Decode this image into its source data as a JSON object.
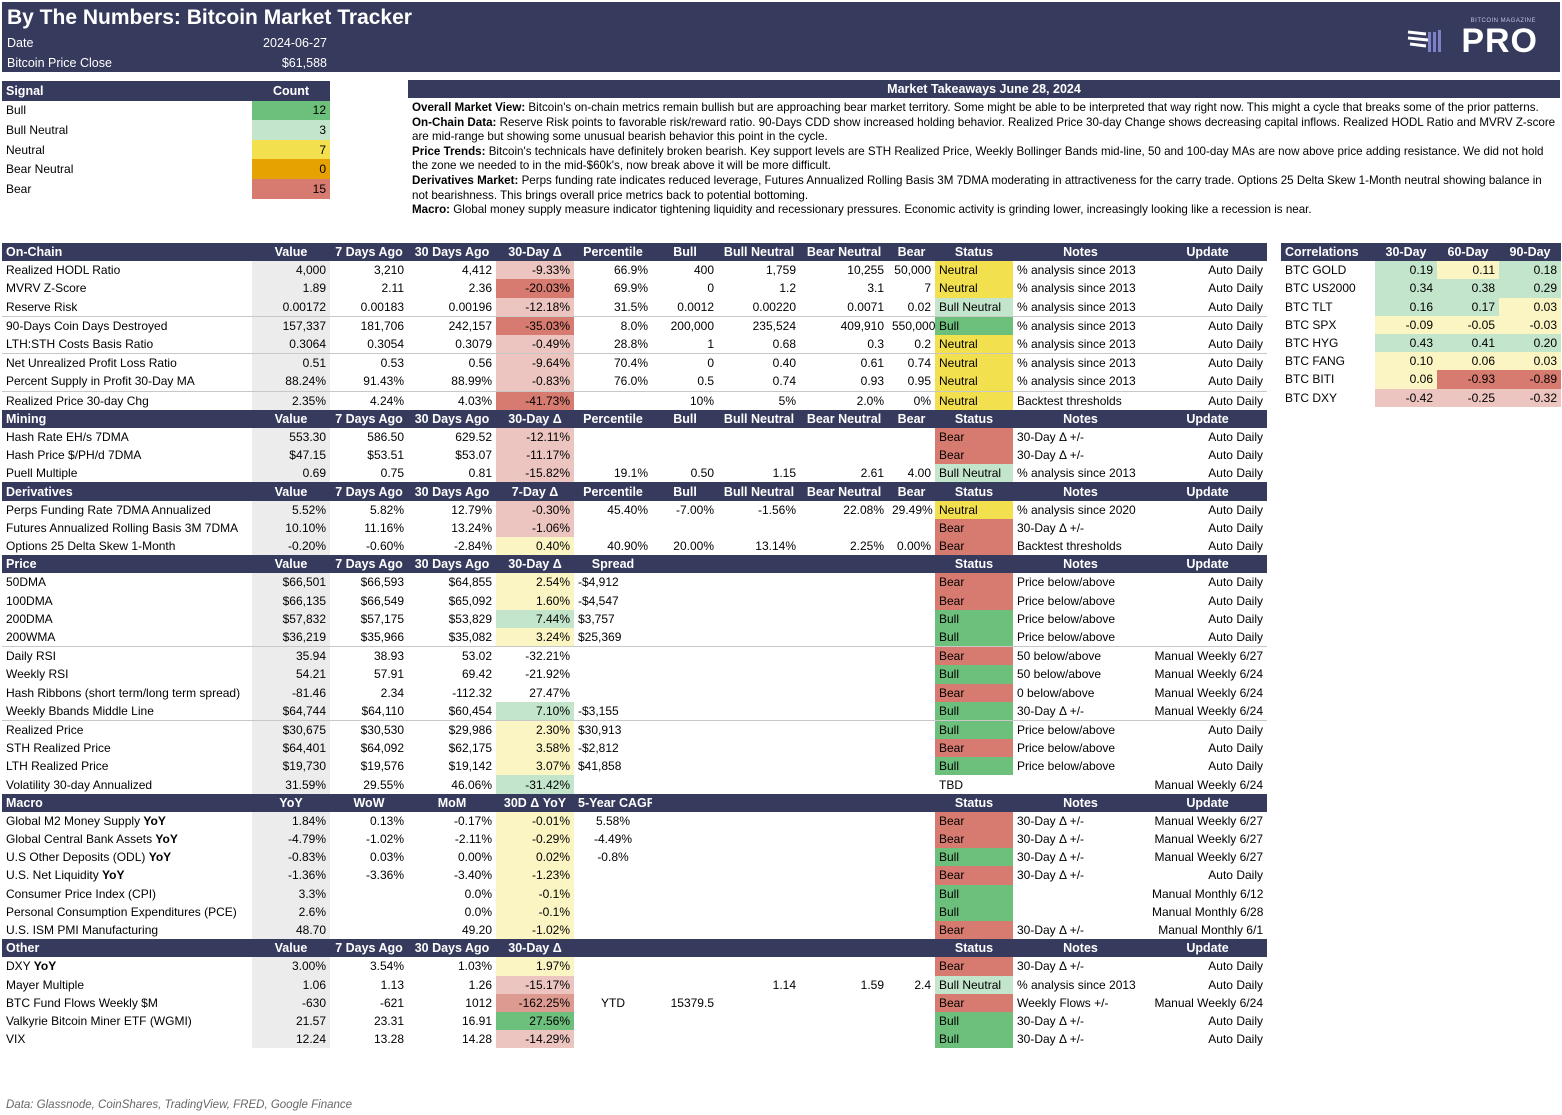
{
  "header": {
    "title": "By The Numbers: Bitcoin Market Tracker",
    "date_label": "Date",
    "date_value": "2024-06-27",
    "price_label": "Bitcoin Price Close",
    "price_value": "$61,588",
    "logo_small": "BITCOIN MAGAZINE",
    "logo_big": "PRO"
  },
  "signal": {
    "headers": [
      "Signal",
      "Count"
    ],
    "rows": [
      [
        "Bull",
        "12"
      ],
      [
        "Bull Neutral",
        "3"
      ],
      [
        "Neutral",
        "7"
      ],
      [
        "Bear Neutral",
        "0"
      ],
      [
        "Bear",
        "15"
      ]
    ]
  },
  "takeaways": {
    "title": "Market Takeaways June 28, 2024",
    "paragraphs": [
      {
        "label": "Overall Market View:",
        "text": " Bitcoin's on-chain metrics remain bullish but are approaching bear market territory. Some might be able to be interpreted that way right now. This might a cycle that breaks some of the prior patterns."
      },
      {
        "label": "On-Chain Data:",
        "text": " Reserve Risk points to favorable risk/reward ratio. 90-Days CDD show increased holding behavior. Realized Price 30-day Change shows decreasing capital inflows. Realized HODL Ratio and MVRV Z-score are mid-range but showing some unusual bearish behavior this point in the cycle."
      },
      {
        "label": "Price Trends:",
        "text": " Bitcoin's technicals have definitely broken bearish. Key support levels are STH Realized Price, Weekly Bollinger Bands mid-line, 50 and 100-day MAs are now above price adding resistance. We did not hold the zone we needed to in the mid-$60k's, now break above it will be more difficult."
      },
      {
        "label": "Derivatives Market:",
        "text": " Perps funding rate indicates reduced leverage, Futures Annualized Rolling Basis 3M 7DMA moderating in attractiveness for the carry trade. Options 25 Delta Skew 1-Month neutral showing balance in not bearishness. This brings overall price metrics back to potential bottoming."
      },
      {
        "label": "Macro:",
        "text": " Global money supply measure indicator tightening liquidity and recessionary pressures. Economic activity is grinding lower, increasingly looking like a recession is near."
      }
    ]
  },
  "main": {
    "onchain_header": [
      "On-Chain",
      "Value",
      "7 Days Ago",
      "30 Days Ago",
      "30-Day Δ",
      "Percentile",
      "Bull",
      "Bull Neutral",
      "Bear Neutral",
      "Bear",
      "Status",
      "Notes",
      "Update"
    ],
    "onchain": [
      [
        "Realized HODL Ratio",
        "4,000",
        "3,210",
        "4,412",
        "-9.33%",
        "66.9%",
        "400",
        "1,759",
        "10,255",
        "50,000",
        "Neutral",
        "% analysis since 2013",
        "Auto Daily"
      ],
      [
        "MVRV Z-Score",
        "1.89",
        "2.11",
        "2.36",
        "-20.03%",
        "69.9%",
        "0",
        "1.2",
        "3.1",
        "7",
        "Neutral",
        "% analysis since 2013",
        "Auto Daily"
      ],
      [
        "Reserve Risk",
        "0.00172",
        "0.00183",
        "0.00196",
        "-12.18%",
        "31.5%",
        "0.0012",
        "0.00220",
        "0.0071",
        "0.02",
        "Bull Neutral",
        "% analysis since 2013",
        "Auto Daily"
      ],
      [
        "90-Days Coin Days Destroyed",
        "157,337",
        "181,706",
        "242,157",
        "-35.03%",
        "8.0%",
        "200,000",
        "235,524",
        "409,910",
        "550,000",
        "Bull",
        "% analysis since 2013",
        "Auto Daily"
      ],
      [
        "LTH:STH Costs Basis Ratio",
        "0.3064",
        "0.3054",
        "0.3079",
        "-0.49%",
        "28.8%",
        "1",
        "0.68",
        "0.3",
        "0.2",
        "Neutral",
        "% analysis since 2013",
        "Auto Daily"
      ],
      [
        "Net Unrealized Profit Loss Ratio",
        "0.51",
        "0.53",
        "0.56",
        "-9.64%",
        "70.4%",
        "0",
        "0.40",
        "0.61",
        "0.74",
        "Neutral",
        "% analysis since 2013",
        "Auto Daily"
      ],
      [
        "Percent Supply in Profit 30-Day MA",
        "88.24%",
        "91.43%",
        "88.99%",
        "-0.83%",
        "76.0%",
        "0.5",
        "0.74",
        "0.93",
        "0.95",
        "Neutral",
        "% analysis since 2013",
        "Auto Daily"
      ],
      [
        "Realized Price 30-day Chg",
        "2.35%",
        "4.24%",
        "4.03%",
        "-41.73%",
        "",
        "10%",
        "5%",
        "2.0%",
        "0%",
        "Neutral",
        "Backtest thresholds",
        "Auto Daily"
      ]
    ],
    "mining_header": [
      "Mining",
      "Value",
      "7 Days Ago",
      "30 Days Ago",
      "30-Day Δ",
      "Percentile",
      "Bull",
      "Bull Neutral",
      "Bear Neutral",
      "Bear",
      "Status",
      "Notes",
      "Update"
    ],
    "mining": [
      [
        "Hash Rate EH/s 7DMA",
        "553.30",
        "586.50",
        "629.52",
        "-12.11%",
        "",
        "",
        "",
        "",
        "",
        "Bear",
        "30-Day Δ +/-",
        "Auto Daily"
      ],
      [
        "Hash Price $/PH/d 7DMA",
        "$47.15",
        "$53.51",
        "$53.07",
        "-11.17%",
        "",
        "",
        "",
        "",
        "",
        "Bear",
        "30-Day Δ +/-",
        "Auto Daily"
      ],
      [
        "Puell Multiple",
        "0.69",
        "0.75",
        "0.81",
        "-15.82%",
        "19.1%",
        "0.50",
        "1.15",
        "2.61",
        "4.00",
        "Bull Neutral",
        "% analysis since 2013",
        "Auto Daily"
      ]
    ],
    "deriv_header": [
      "Derivatives",
      "Value",
      "7 Days Ago",
      "30 Days Ago",
      "7-Day Δ",
      "Percentile",
      "Bull",
      "Bull Neutral",
      "Bear Neutral",
      "Bear",
      "Status",
      "Notes",
      "Update"
    ],
    "deriv": [
      [
        "Perps Funding Rate 7DMA Annualized",
        "5.52%",
        "5.82%",
        "12.79%",
        "-0.30%",
        "45.40%",
        "-7.00%",
        "-1.56%",
        "22.08%",
        "29.49%",
        "Neutral",
        "% analysis since 2020",
        "Auto Daily"
      ],
      [
        "Futures Annualized Rolling Basis 3M 7DMA",
        "10.10%",
        "11.16%",
        "13.24%",
        "-1.06%",
        "",
        "",
        "",
        "",
        "",
        "Bear",
        "30-Day Δ +/-",
        "Auto Daily"
      ],
      [
        "Options 25 Delta Skew 1-Month",
        "-0.20%",
        "-0.60%",
        "-2.84%",
        "0.40%",
        "40.90%",
        "20.00%",
        "13.14%",
        "2.25%",
        "0.00%",
        "Bear",
        "Backtest thresholds",
        "Auto Daily"
      ]
    ],
    "price_header": [
      "Price",
      "Value",
      "7 Days Ago",
      "30 Days Ago",
      "30-Day Δ",
      "Spread",
      "",
      "",
      "",
      "",
      "Status",
      "Notes",
      "Update"
    ],
    "price": [
      [
        "50DMA",
        "$66,501",
        "$66,593",
        "$64,855",
        "2.54%",
        "-$4,912",
        "Bear",
        "Price below/above",
        "Auto Daily"
      ],
      [
        "100DMA",
        "$66,135",
        "$66,549",
        "$65,092",
        "1.60%",
        "-$4,547",
        "Bear",
        "Price below/above",
        "Auto Daily"
      ],
      [
        "200DMA",
        "$57,832",
        "$57,175",
        "$53,829",
        "7.44%",
        "$3,757",
        "Bull",
        "Price below/above",
        "Auto Daily"
      ],
      [
        "200WMA",
        "$36,219",
        "$35,966",
        "$35,082",
        "3.24%",
        "$25,369",
        "Bull",
        "Price below/above",
        "Auto Daily"
      ],
      [
        "Daily RSI",
        "35.94",
        "38.93",
        "53.02",
        "-32.21%",
        "",
        "Bear",
        "50 below/above",
        "Manual Weekly 6/27"
      ],
      [
        "Weekly RSI",
        "54.21",
        "57.91",
        "69.42",
        "-21.92%",
        "",
        "Bull",
        "50 below/above",
        "Manual Weekly 6/24"
      ],
      [
        "Hash Ribbons (short term/long term spread)",
        "-81.46",
        "2.34",
        "-112.32",
        "27.47%",
        "",
        "Bear",
        "0 below/above",
        "Manual Weekly 6/24"
      ],
      [
        "Weekly Bbands Middle Line",
        "$64,744",
        "$64,110",
        "$60,454",
        "7.10%",
        "-$3,155",
        "Bull",
        "30-Day Δ +/-",
        "Manual Weekly 6/24"
      ],
      [
        "Realized Price",
        "$30,675",
        "$30,530",
        "$29,986",
        "2.30%",
        "$30,913",
        "Bull",
        "Price below/above",
        "Auto Daily"
      ],
      [
        "STH Realized Price",
        "$64,401",
        "$64,092",
        "$62,175",
        "3.58%",
        "-$2,812",
        "Bear",
        "Price below/above",
        "Auto Daily"
      ],
      [
        "LTH Realized Price",
        "$19,730",
        "$19,576",
        "$19,142",
        "3.07%",
        "$41,858",
        "Bull",
        "Price below/above",
        "Auto Daily"
      ],
      [
        "Volatility 30-day Annualized",
        "31.59%",
        "29.55%",
        "46.06%",
        "-31.42%",
        "",
        "TBD",
        "",
        "Manual Weekly 6/24"
      ]
    ],
    "macro_header": [
      "Macro",
      "YoY",
      "WoW",
      "MoM",
      "30D Δ YoY",
      "5-Year CAGR",
      "",
      "",
      "",
      "",
      "Status",
      "Notes",
      "Update"
    ],
    "macro": [
      [
        "Global M2 Money Supply ",
        "YoY",
        "1.84%",
        "0.13%",
        "-0.17%",
        "-0.01%",
        "5.58%",
        "Bear",
        "30-Day Δ +/-",
        "Manual Weekly 6/27"
      ],
      [
        "Global Central Bank Assets ",
        "YoY",
        "-4.79%",
        "-1.02%",
        "-2.11%",
        "-0.29%",
        "-4.49%",
        "Bear",
        "30-Day Δ +/-",
        "Manual Weekly 6/27"
      ],
      [
        "U.S Other Deposits (ODL) ",
        "YoY",
        "-0.83%",
        "0.03%",
        "0.00%",
        "0.02%",
        "-0.8%",
        "Bull",
        "30-Day Δ +/-",
        "Manual Weekly 6/27"
      ],
      [
        "U.S. Net Liquidity ",
        "YoY",
        "-1.36%",
        "-3.36%",
        "-3.40%",
        "-1.23%",
        "",
        "Bear",
        "30-Day Δ +/-",
        "Auto Daily"
      ],
      [
        "Consumer Price Index (CPI)",
        "",
        "3.3%",
        "",
        "0.0%",
        "-0.1%",
        "",
        "Bull",
        "",
        "Manual Monthly 6/12"
      ],
      [
        "Personal Consumption Expenditures (PCE)",
        "",
        "2.6%",
        "",
        "0.0%",
        "-0.1%",
        "",
        "Bull",
        "",
        "Manual Monthly 6/28"
      ],
      [
        "U.S. ISM PMI Manufacturing",
        "",
        "48.70",
        "",
        "49.20",
        "-1.02%",
        "",
        "Bear",
        "30-Day Δ +/-",
        "Manual Monthly 6/1"
      ]
    ],
    "other_header": [
      "Other",
      "Value",
      "7 Days Ago",
      "30 Days Ago",
      "30-Day Δ",
      "",
      "",
      "",
      "",
      "",
      "Status",
      "Notes",
      "Update"
    ],
    "other": [
      [
        "DXY ",
        "YoY",
        "3.00%",
        "3.54%",
        "1.03%",
        "1.97%",
        "",
        "",
        "",
        "",
        "",
        "Bear",
        "30-Day Δ +/-",
        "Auto Daily"
      ],
      [
        "Mayer Multiple",
        "",
        "1.06",
        "1.13",
        "1.26",
        "-15.17%",
        "",
        "",
        "1.14",
        "1.59",
        "2.4",
        "Bull Neutral",
        "% analysis since 2013",
        "Auto Daily"
      ],
      [
        "BTC Fund Flows Weekly $M",
        "",
        "-630",
        "-621",
        "1012",
        "-162.25%",
        "YTD",
        "15379.5",
        "",
        "",
        "",
        "Bear",
        "Weekly Flows +/-",
        "Manual Weekly 6/24"
      ],
      [
        "Valkyrie Bitcoin Miner ETF (WGMI)",
        "",
        "21.57",
        "23.31",
        "16.91",
        "27.56%",
        "",
        "",
        "",
        "",
        "",
        "Bull",
        "30-Day Δ +/-",
        "Auto Daily"
      ],
      [
        "VIX",
        "",
        "12.24",
        "13.28",
        "14.28",
        "-14.29%",
        "",
        "",
        "",
        "",
        "",
        "Bull",
        "30-Day Δ +/-",
        "Auto Daily"
      ]
    ]
  },
  "correlations": {
    "headers": [
      "Correlations",
      "30-Day",
      "60-Day",
      "90-Day"
    ],
    "rows": [
      [
        "BTC GOLD",
        "0.19",
        "0.11",
        "0.18"
      ],
      [
        "BTC US2000",
        "0.34",
        "0.38",
        "0.29"
      ],
      [
        "BTC TLT",
        "0.16",
        "0.17",
        "0.03"
      ],
      [
        "BTC SPX",
        "-0.09",
        "-0.05",
        "-0.03"
      ],
      [
        "BTC HYG",
        "0.43",
        "0.41",
        "0.20"
      ],
      [
        "BTC FANG",
        "0.10",
        "0.06",
        "0.03"
      ],
      [
        "BTC BITI",
        "0.06",
        "-0.93",
        "-0.89"
      ],
      [
        "BTC DXY",
        "-0.42",
        "-0.25",
        "-0.32"
      ]
    ]
  },
  "source": "Data: Glassnode, CoinShares, TradingView, FRED, Google Finance"
}
